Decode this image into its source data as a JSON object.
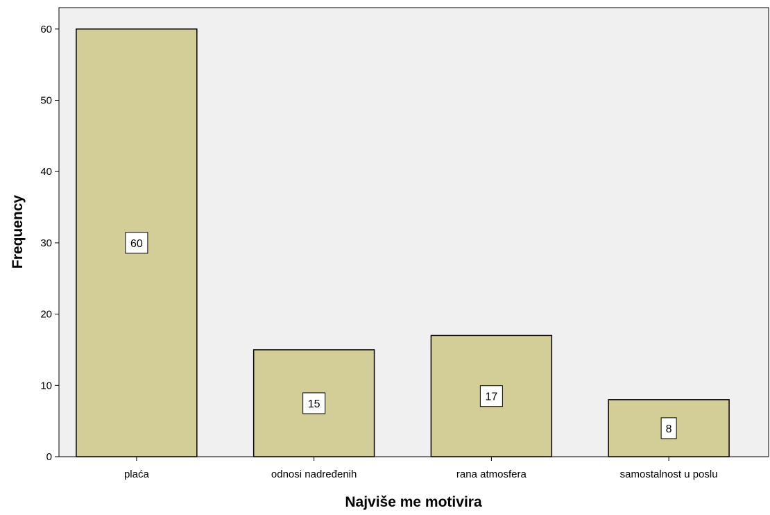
{
  "chart_data": {
    "type": "bar",
    "categories": [
      "plaća",
      "odnosi nadređenih",
      "rana atmosfera",
      "samostalnost u poslu"
    ],
    "values": [
      60,
      15,
      17,
      8
    ],
    "data_labels": [
      "60",
      "15",
      "17",
      "8"
    ],
    "xlabel": "Najviše me motivira",
    "ylabel": "Frequency",
    "ylim": [
      0,
      63
    ],
    "yticks": [
      0,
      10,
      20,
      30,
      40,
      50,
      60
    ],
    "grid": false,
    "legend": "none",
    "colors": {
      "bar_fill": "#d3ce97",
      "bar_stroke": "#000000",
      "plot_background": "#f0f0f0",
      "label_box": "#ffffff"
    }
  }
}
